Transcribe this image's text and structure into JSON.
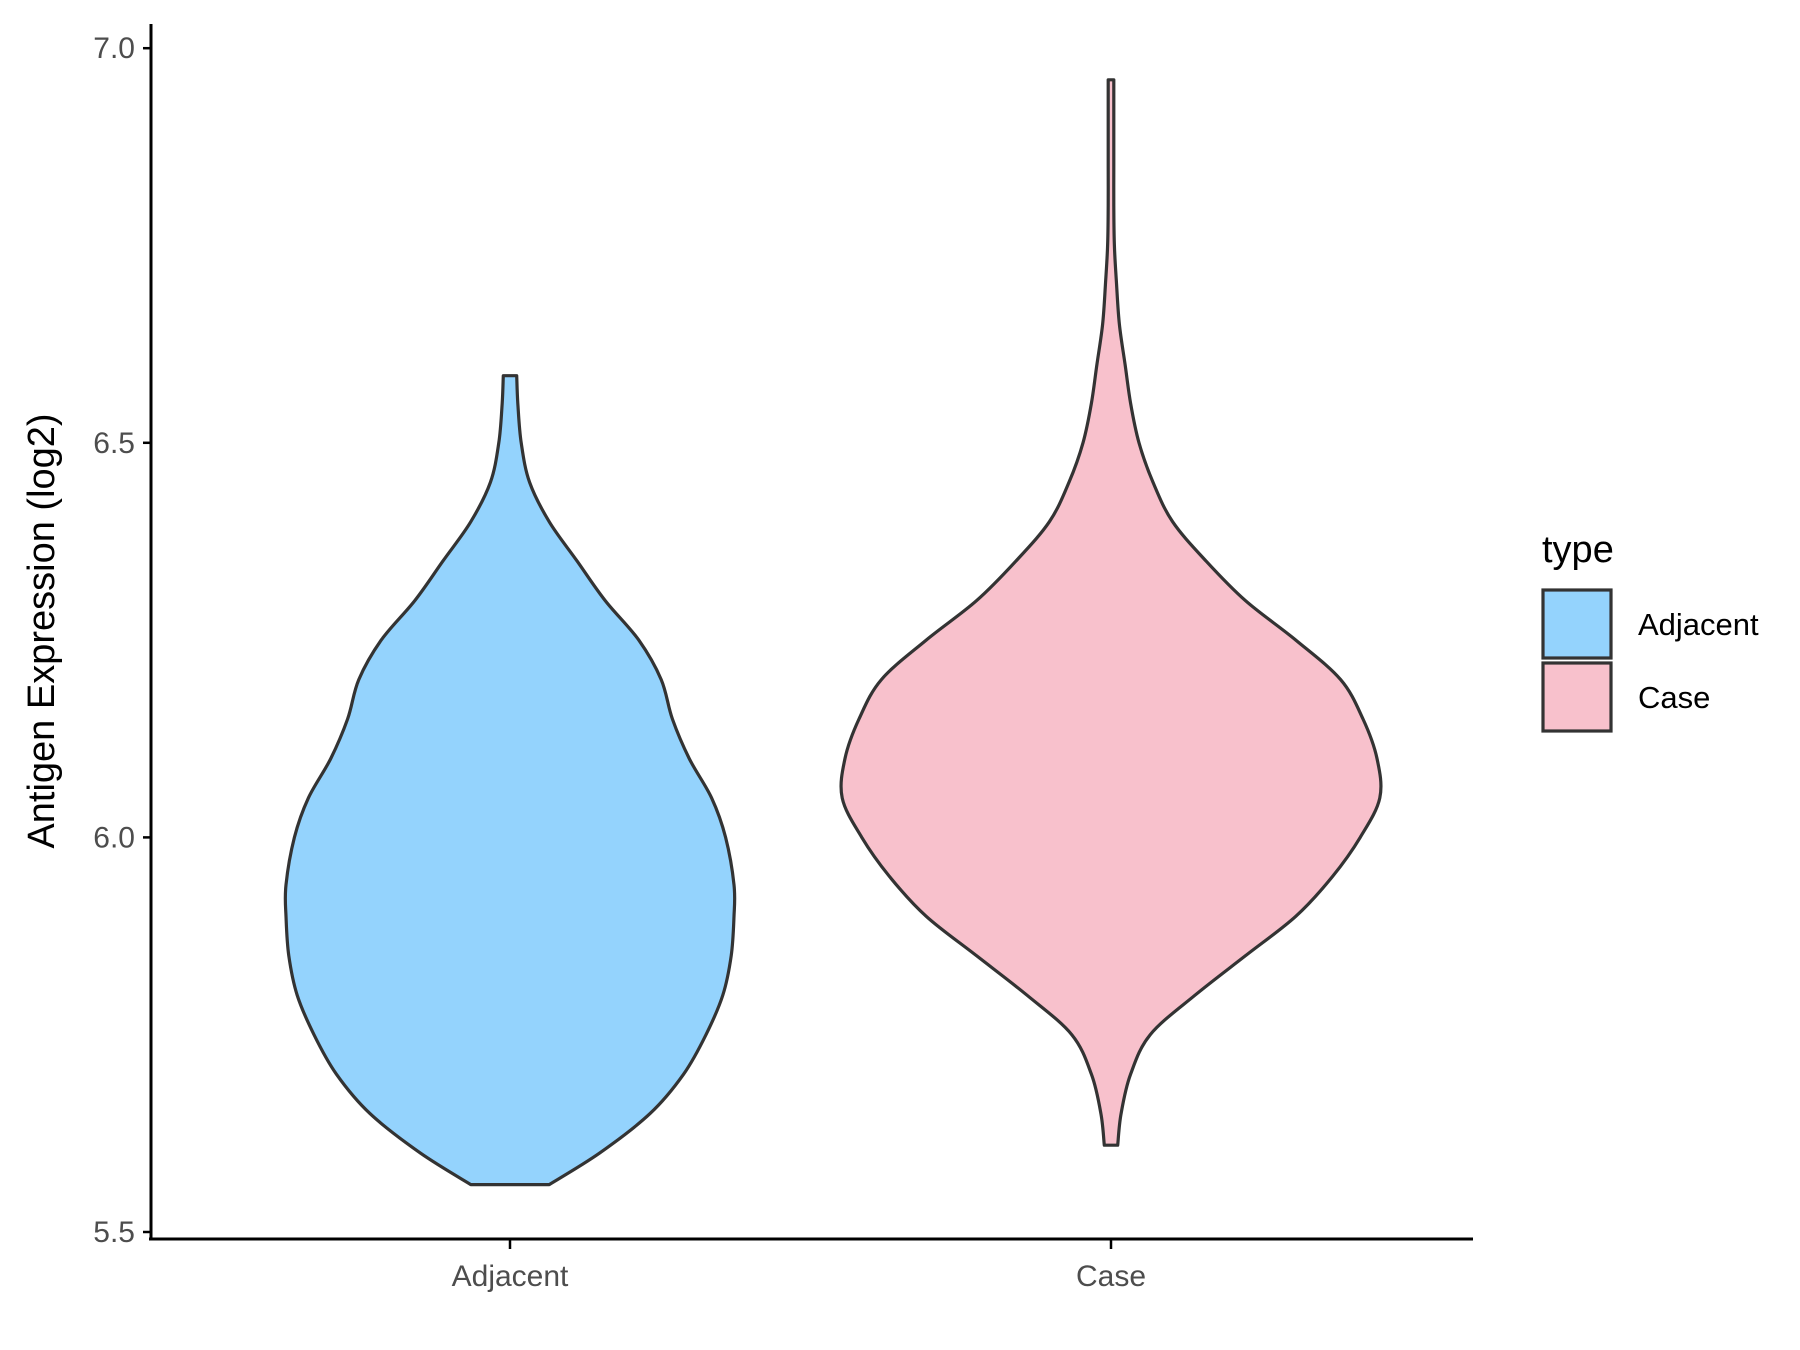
{
  "chart_data": {
    "type": "violin",
    "title": "",
    "xlabel": "",
    "ylabel": "Antigen Expression (log2)",
    "ylim": [
      5.47,
      7.03
    ],
    "yticks": [
      5.5,
      6.0,
      6.5,
      7.0
    ],
    "ytick_labels": [
      "5.5",
      "6.0",
      "6.5",
      "7.0"
    ],
    "categories": [
      "Adjacent",
      "Case"
    ],
    "grid": false,
    "legend": {
      "title": "type",
      "position": "right",
      "entries": [
        "Adjacent",
        "Case"
      ]
    },
    "series": [
      {
        "name": "Adjacent",
        "color": "#94d3fd",
        "min": 5.56,
        "max": 6.585,
        "density": [
          [
            5.56,
            0.07
          ],
          [
            5.6,
            0.16
          ],
          [
            5.65,
            0.25
          ],
          [
            5.7,
            0.31
          ],
          [
            5.75,
            0.35
          ],
          [
            5.8,
            0.38
          ],
          [
            5.85,
            0.395
          ],
          [
            5.9,
            0.4
          ],
          [
            5.94,
            0.4
          ],
          [
            6.0,
            0.385
          ],
          [
            6.05,
            0.36
          ],
          [
            6.1,
            0.32
          ],
          [
            6.15,
            0.29
          ],
          [
            6.2,
            0.27
          ],
          [
            6.25,
            0.23
          ],
          [
            6.3,
            0.17
          ],
          [
            6.35,
            0.12
          ],
          [
            6.4,
            0.07
          ],
          [
            6.45,
            0.035
          ],
          [
            6.5,
            0.02
          ],
          [
            6.55,
            0.014
          ],
          [
            6.585,
            0.012
          ]
        ]
      },
      {
        "name": "Case",
        "color": "#f8c1cc",
        "min": 5.61,
        "max": 6.96,
        "density": [
          [
            5.61,
            0.012
          ],
          [
            5.65,
            0.018
          ],
          [
            5.7,
            0.035
          ],
          [
            5.75,
            0.07
          ],
          [
            5.8,
            0.15
          ],
          [
            5.85,
            0.24
          ],
          [
            5.9,
            0.33
          ],
          [
            5.95,
            0.395
          ],
          [
            6.0,
            0.445
          ],
          [
            6.05,
            0.48
          ],
          [
            6.1,
            0.475
          ],
          [
            6.15,
            0.45
          ],
          [
            6.2,
            0.41
          ],
          [
            6.25,
            0.33
          ],
          [
            6.3,
            0.24
          ],
          [
            6.35,
            0.17
          ],
          [
            6.4,
            0.11
          ],
          [
            6.45,
            0.075
          ],
          [
            6.5,
            0.05
          ],
          [
            6.55,
            0.035
          ],
          [
            6.6,
            0.025
          ],
          [
            6.65,
            0.015
          ],
          [
            6.7,
            0.01
          ],
          [
            6.75,
            0.006
          ],
          [
            6.8,
            0.005
          ],
          [
            6.85,
            0.005
          ],
          [
            6.9,
            0.005
          ],
          [
            6.96,
            0.005
          ]
        ]
      }
    ]
  }
}
